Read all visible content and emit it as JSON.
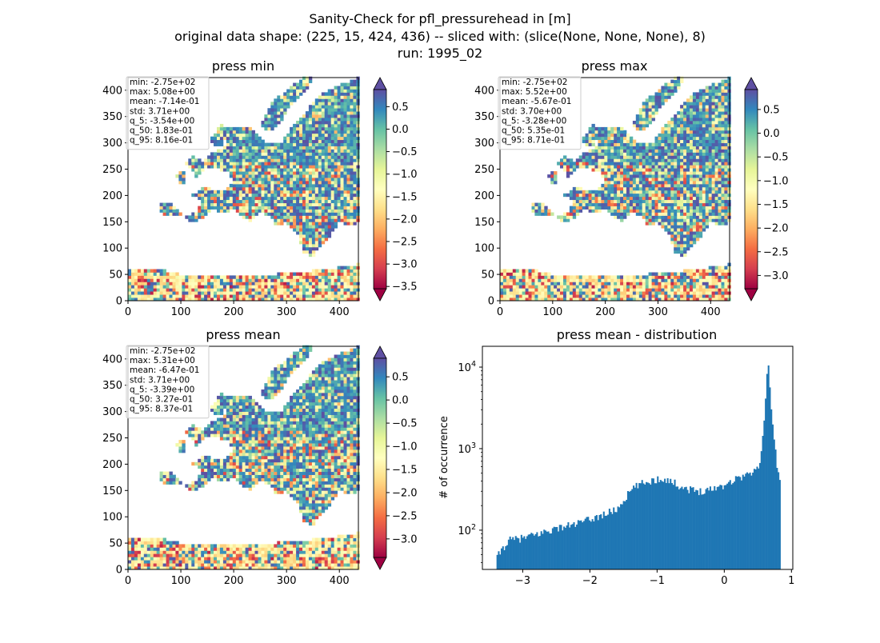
{
  "suptitle": {
    "line1": "Sanity-Check for pfl_pressurehead in [m]",
    "line2": "original data shape: (225, 15, 424, 436) -- sliced with: (slice(None, None, None), 8)",
    "line3": "run: 1995_02"
  },
  "colors": {
    "bar": "#1f77b4",
    "cmap": [
      "#9e0142",
      "#d53e4f",
      "#f46d43",
      "#fdae61",
      "#fee08b",
      "#ffffbf",
      "#e6f598",
      "#abdda4",
      "#66c2a5",
      "#3288bd",
      "#5e4fa2"
    ],
    "land": "#fbe6a0",
    "sea": "#ffffff"
  },
  "chart_data": [
    {
      "type": "heatmap",
      "title": "press min",
      "xlim": [
        0,
        436
      ],
      "ylim": [
        0,
        424
      ],
      "xticks": [
        "0",
        "100",
        "200",
        "300",
        "400"
      ],
      "yticks": [
        "0",
        "50",
        "100",
        "150",
        "200",
        "250",
        "300",
        "350",
        "400"
      ],
      "colorbar": {
        "range": [
          -3.55,
          0.88
        ],
        "ticks": [
          "0.5",
          "0.0",
          "−0.5",
          "−1.0",
          "−1.5",
          "−2.0",
          "−2.5",
          "−3.0",
          "−3.5"
        ],
        "tick_values": [
          0.5,
          0.0,
          -0.5,
          -1.0,
          -1.5,
          -2.0,
          -2.5,
          -3.0,
          -3.5
        ],
        "extend": "both"
      },
      "stats": [
        "min: -2.75e+02",
        "max: 5.08e+00",
        "mean: -7.14e-01",
        "std: 3.71e+00",
        "q_5: -3.54e+00",
        "q_50: 1.83e-01",
        "q_95: 8.16e-01"
      ]
    },
    {
      "type": "heatmap",
      "title": "press max",
      "xlim": [
        0,
        436
      ],
      "ylim": [
        0,
        424
      ],
      "xticks": [
        "0",
        "100",
        "200",
        "300",
        "400"
      ],
      "yticks": [
        "0",
        "50",
        "100",
        "150",
        "200",
        "250",
        "300",
        "350",
        "400"
      ],
      "colorbar": {
        "range": [
          -3.28,
          0.92
        ],
        "ticks": [
          "0.5",
          "0.0",
          "−0.5",
          "−1.0",
          "−1.5",
          "−2.0",
          "−2.5",
          "−3.0"
        ],
        "tick_values": [
          0.5,
          0.0,
          -0.5,
          -1.0,
          -1.5,
          -2.0,
          -2.5,
          -3.0
        ],
        "extend": "both"
      },
      "stats": [
        "min: -2.75e+02",
        "max: 5.52e+00",
        "mean: -5.67e-01",
        "std: 3.70e+00",
        "q_5: -3.28e+00",
        "q_50: 5.35e-01",
        "q_95: 8.71e-01"
      ]
    },
    {
      "type": "heatmap",
      "title": "press mean",
      "xlim": [
        0,
        436
      ],
      "ylim": [
        0,
        424
      ],
      "xticks": [
        "0",
        "100",
        "200",
        "300",
        "400"
      ],
      "yticks": [
        "0",
        "50",
        "100",
        "150",
        "200",
        "250",
        "300",
        "350",
        "400"
      ],
      "colorbar": {
        "range": [
          -3.4,
          0.9
        ],
        "ticks": [
          "0.5",
          "0.0",
          "−0.5",
          "−1.0",
          "−1.5",
          "−2.0",
          "−2.5",
          "−3.0"
        ],
        "tick_values": [
          0.5,
          0.0,
          -0.5,
          -1.0,
          -1.5,
          -2.0,
          -2.5,
          -3.0
        ],
        "extend": "both"
      },
      "stats": [
        "min: -2.75e+02",
        "max: 5.31e+00",
        "mean: -6.47e-01",
        "std: 3.71e+00",
        "q_5: -3.39e+00",
        "q_50: 3.27e-01",
        "q_95: 8.37e-01"
      ]
    },
    {
      "type": "bar",
      "title": "press mean - distribution",
      "ylabel": "# of occurrence",
      "yscale": "log",
      "xlim": [
        -3.6,
        1.02
      ],
      "ylim": [
        33,
        18000
      ],
      "xticks": [
        "−3",
        "−2",
        "−1",
        "0",
        "1"
      ],
      "xtick_values": [
        -3,
        -2,
        -1,
        0,
        1
      ],
      "yticks": [
        {
          "base": "10",
          "exp": "2",
          "value": 100
        },
        {
          "base": "10",
          "exp": "3",
          "value": 1000
        },
        {
          "base": "10",
          "exp": "4",
          "value": 10000
        }
      ],
      "bin_edges_range": [
        -3.39,
        0.837
      ],
      "anchor_points": [
        [
          -3.39,
          45
        ],
        [
          -3.3,
          60
        ],
        [
          -3.2,
          75
        ],
        [
          -3.0,
          80
        ],
        [
          -2.8,
          88
        ],
        [
          -2.6,
          100
        ],
        [
          -2.4,
          110
        ],
        [
          -2.2,
          120
        ],
        [
          -2.0,
          135
        ],
        [
          -1.8,
          155
        ],
        [
          -1.6,
          180
        ],
        [
          -1.5,
          230
        ],
        [
          -1.4,
          300
        ],
        [
          -1.3,
          350
        ],
        [
          -1.2,
          380
        ],
        [
          -1.1,
          400
        ],
        [
          -1.0,
          420
        ],
        [
          -0.9,
          430
        ],
        [
          -0.8,
          400
        ],
        [
          -0.6,
          330
        ],
        [
          -0.4,
          300
        ],
        [
          -0.2,
          320
        ],
        [
          0.0,
          360
        ],
        [
          0.2,
          440
        ],
        [
          0.4,
          500
        ],
        [
          0.5,
          560
        ],
        [
          0.55,
          900
        ],
        [
          0.6,
          2500
        ],
        [
          0.65,
          13000
        ],
        [
          0.7,
          3000
        ],
        [
          0.75,
          1100
        ],
        [
          0.8,
          500
        ],
        [
          0.837,
          450
        ]
      ]
    }
  ]
}
